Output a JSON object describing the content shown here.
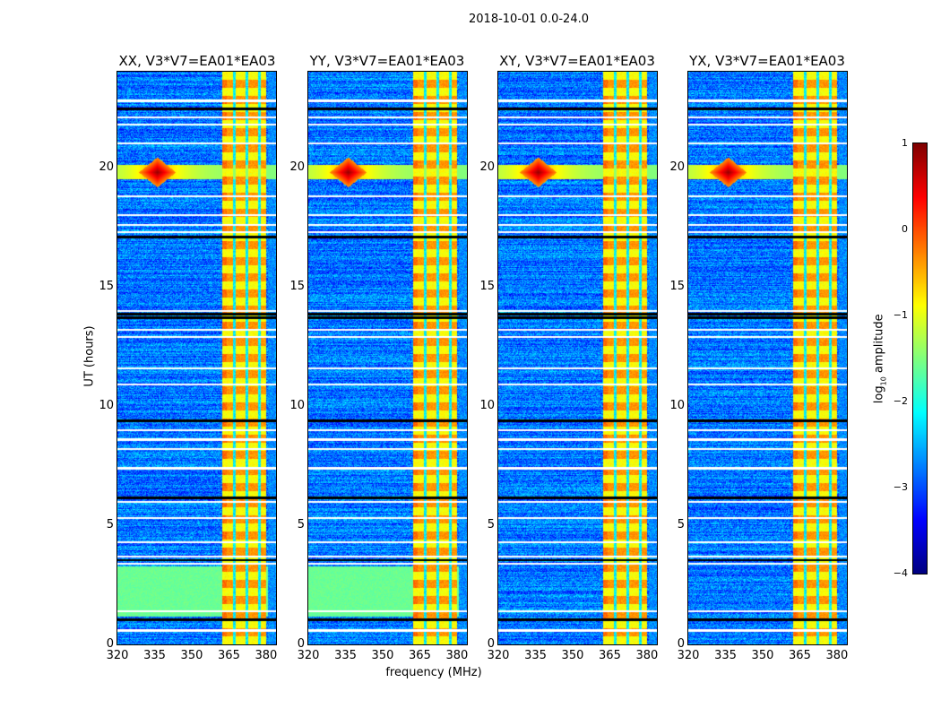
{
  "suptitle": "2018-10-01 0.0-24.0",
  "xlabel": "frequency (MHz)",
  "ylabel": "UT (hours)",
  "colorbar": {
    "label_prefix": "log",
    "label_sub": "10",
    "label_suffix": " amplitude",
    "ticks": [
      "1",
      "0",
      "−1",
      "−2",
      "−3",
      "−4"
    ],
    "range": [
      -4,
      1
    ],
    "colormap": "jet"
  },
  "chart_data": {
    "type": "heatmap",
    "title": "2018-10-01 0.0-24.0",
    "xlabel": "frequency (MHz)",
    "ylabel": "UT (hours)",
    "xlim": [
      320,
      384
    ],
    "ylim": [
      0,
      24
    ],
    "xticks": [
      "320",
      "335",
      "350",
      "365",
      "380"
    ],
    "yticks": [
      "0",
      "5",
      "10",
      "15",
      "20"
    ],
    "color_range": [
      -4,
      1
    ],
    "background_level": -2.8,
    "rfi_band_mhz": [
      362,
      380
    ],
    "rfi_level": -0.6,
    "flagged_white_hours": [
      0.6,
      1.4,
      3.4,
      3.7,
      4.3,
      5.3,
      6.0,
      7.4,
      8.2,
      8.6,
      9.0,
      10.9,
      11.6,
      12.9,
      13.2,
      14.0,
      17.3,
      17.6,
      18.0,
      18.8,
      21.0,
      21.8,
      22.1,
      22.8
    ],
    "flagged_black_hours": [
      1.05,
      3.55,
      6.15,
      9.4,
      13.7,
      13.85,
      17.1,
      22.45
    ],
    "hotspot": {
      "freq_mhz": 336,
      "hour": 19.8,
      "level": 0.9
    },
    "panels": [
      {
        "title": "XX, V3*V7=EA01*EA03",
        "green_band_hours": [
          1.2,
          3.3
        ]
      },
      {
        "title": "YY, V3*V7=EA01*EA03",
        "green_band_hours": [
          1.2,
          3.3
        ]
      },
      {
        "title": "XY, V3*V7=EA01*EA03",
        "green_band_hours": []
      },
      {
        "title": "YX, V3*V7=EA01*EA03",
        "green_band_hours": []
      }
    ]
  }
}
